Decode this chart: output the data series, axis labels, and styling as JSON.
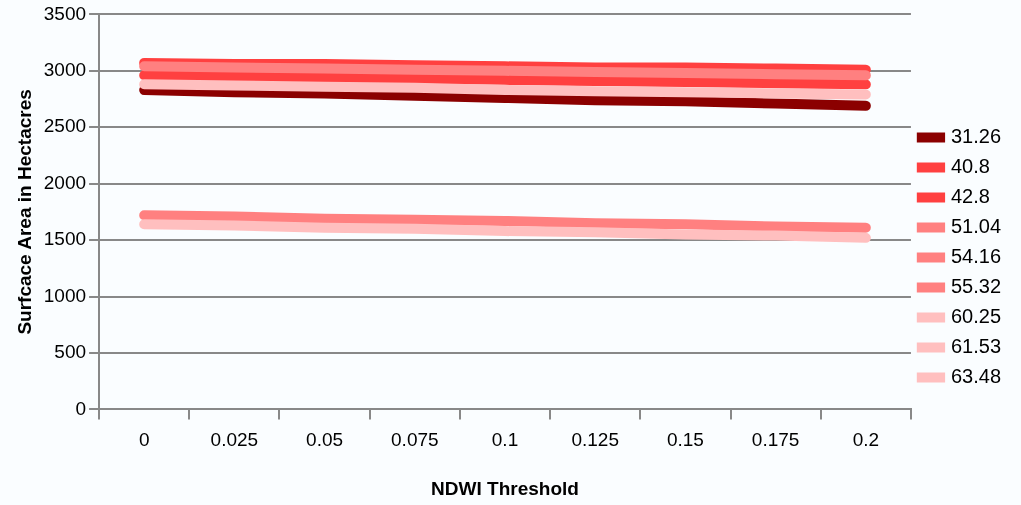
{
  "chart_data": {
    "type": "line",
    "xlabel": "NDWI Threshold",
    "ylabel": "Surfcace Area in Hectacres",
    "categories": [
      "0",
      "0.025",
      "0.05",
      "0.075",
      "0.1",
      "0.125",
      "0.15",
      "0.175",
      "0.2"
    ],
    "series": [
      {
        "name": "31.26",
        "color": "#8b0000",
        "values": [
          2830,
          2810,
          2800,
          2780,
          2760,
          2740,
          2730,
          2710,
          2690
        ]
      },
      {
        "name": "40.8",
        "color": "#ff4040",
        "values": [
          3070,
          3060,
          3060,
          3050,
          3040,
          3030,
          3030,
          3020,
          3010
        ]
      },
      {
        "name": "42.8",
        "color": "#ff4040",
        "values": [
          2960,
          2950,
          2940,
          2930,
          2920,
          2910,
          2900,
          2890,
          2880
        ]
      },
      {
        "name": "51.04",
        "color": "#ff8080",
        "values": [
          null,
          null,
          null,
          null,
          null,
          null,
          null,
          null,
          null
        ]
      },
      {
        "name": "54.16",
        "color": "#ff8080",
        "values": [
          1720,
          1710,
          1690,
          1680,
          1670,
          1650,
          1640,
          1620,
          1610
        ]
      },
      {
        "name": "55.32",
        "color": "#ff8080",
        "values": [
          3040,
          3030,
          3020,
          3010,
          3000,
          2990,
          2980,
          2970,
          2960
        ]
      },
      {
        "name": "60.25",
        "color": "#ffbfbf",
        "values": [
          null,
          null,
          null,
          null,
          null,
          null,
          null,
          null,
          null
        ]
      },
      {
        "name": "61.53",
        "color": "#ffbfbf",
        "values": [
          1640,
          1630,
          1610,
          1600,
          1580,
          1570,
          1550,
          1540,
          1520
        ]
      },
      {
        "name": "63.48",
        "color": "#ffbfbf",
        "values": [
          2880,
          2870,
          2860,
          2850,
          2830,
          2820,
          2810,
          2800,
          2790
        ]
      }
    ],
    "ylim": [
      0,
      3500
    ],
    "yticks": [
      0,
      500,
      1000,
      1500,
      2000,
      2500,
      3000,
      3500
    ],
    "grid": "y",
    "legend": "right",
    "marker": "none",
    "line_style": "solid"
  }
}
